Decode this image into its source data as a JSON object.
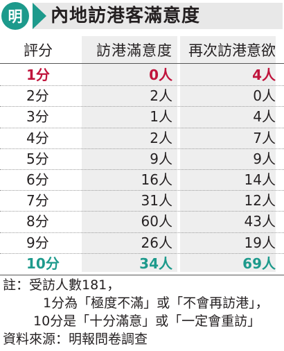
{
  "logo": "明",
  "title": "內地訪港客滿意度",
  "colors": {
    "accent": "#1d9a8c",
    "highlight_low": "#c0143c",
    "column_shade": "#eeeeee"
  },
  "chart_data": {
    "type": "table",
    "headers": [
      "評分",
      "訪港滿意度",
      "再次訪港意欲"
    ],
    "rows": [
      {
        "score": "1分",
        "satisfaction": "0人",
        "revisit": "4人",
        "style": "red"
      },
      {
        "score": "2分",
        "satisfaction": "2人",
        "revisit": "0人",
        "style": ""
      },
      {
        "score": "3分",
        "satisfaction": "1人",
        "revisit": "4人",
        "style": ""
      },
      {
        "score": "4分",
        "satisfaction": "2人",
        "revisit": "7人",
        "style": ""
      },
      {
        "score": "5分",
        "satisfaction": "9人",
        "revisit": "9人",
        "style": ""
      },
      {
        "score": "6分",
        "satisfaction": "16人",
        "revisit": "14人",
        "style": ""
      },
      {
        "score": "7分",
        "satisfaction": "31人",
        "revisit": "12人",
        "style": ""
      },
      {
        "score": "8分",
        "satisfaction": "60人",
        "revisit": "43人",
        "style": ""
      },
      {
        "score": "9分",
        "satisfaction": "26人",
        "revisit": "19人",
        "style": ""
      },
      {
        "score": "10分",
        "satisfaction": "34人",
        "revisit": "69人",
        "style": "teal"
      }
    ]
  },
  "notes": [
    "註：受訪人數181，",
    "1分為「極度不滿」或「不會再訪港」，",
    "10分是「十分滿意」或「一定會重訪」",
    "資料來源：明報問卷調查"
  ]
}
